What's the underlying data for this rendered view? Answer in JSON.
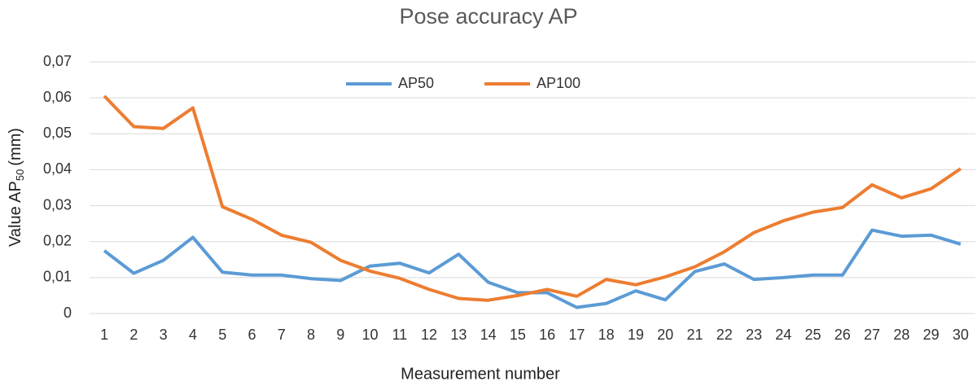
{
  "chart_data": {
    "type": "line",
    "title": "Pose accuracy AP",
    "x_label": "Measurement number",
    "y_label_parts": [
      "Value AP",
      "50",
      "(mm)"
    ],
    "categories": [
      "1",
      "2",
      "3",
      "4",
      "5",
      "6",
      "7",
      "8",
      "9",
      "10",
      "11",
      "12",
      "13",
      "14",
      "15",
      "16",
      "17",
      "18",
      "19",
      "20",
      "21",
      "22",
      "23",
      "24",
      "25",
      "26",
      "27",
      "28",
      "29",
      "30"
    ],
    "series": [
      {
        "name": "AP50",
        "color": "#5b9bd5",
        "values": [
          0.0175,
          0.0112,
          0.0148,
          0.0212,
          0.0115,
          0.0107,
          0.0107,
          0.0097,
          0.0092,
          0.0132,
          0.014,
          0.0113,
          0.0165,
          0.0087,
          0.0058,
          0.0058,
          0.0017,
          0.0028,
          0.0063,
          0.0038,
          0.0117,
          0.0138,
          0.0095,
          0.01,
          0.0107,
          0.0107,
          0.0232,
          0.0215,
          0.0218,
          0.0193
        ]
      },
      {
        "name": "AP100",
        "color": "#ed7d31",
        "values": [
          0.0605,
          0.052,
          0.0515,
          0.0572,
          0.0297,
          0.0262,
          0.0218,
          0.0198,
          0.0148,
          0.0118,
          0.0098,
          0.0067,
          0.0042,
          0.0037,
          0.005,
          0.0067,
          0.0048,
          0.0095,
          0.008,
          0.0102,
          0.013,
          0.0172,
          0.0225,
          0.0258,
          0.0282,
          0.0295,
          0.0358,
          0.0322,
          0.0347,
          0.0403
        ]
      }
    ],
    "ylim": [
      0,
      0.07
    ],
    "yticks": [
      0,
      {
        "value": 0.01,
        "label": "0,01"
      },
      {
        "value": 0.02,
        "label": "0,02"
      },
      {
        "value": 0.03,
        "label": "0,03"
      },
      {
        "value": 0.04,
        "label": "0,04"
      },
      {
        "value": 0.05,
        "label": "0,05"
      },
      {
        "value": 0.06,
        "label": "0,06"
      },
      {
        "value": 0.07,
        "label": "0,07"
      }
    ],
    "grid": true,
    "legend": "top"
  }
}
